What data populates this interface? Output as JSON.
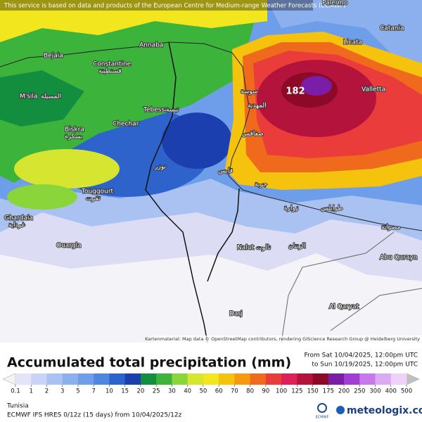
{
  "header": {
    "notice": "This service is based on data and products of the European Centre for Medium-range Weather Forecasts (ECMWF)"
  },
  "map": {
    "max_label": 182,
    "cities": [
      "Palermo",
      "Catania",
      "Licata",
      "Valletta",
      "Annaba",
      "Bejaia",
      "Constantine",
      "قسنطينة",
      "M'sila",
      "المسيلة",
      "Biskra",
      "بسكرة",
      "Tebessa",
      "تبسة",
      "Chechar",
      "Touggourt",
      "تقرت",
      "Ghardaia",
      "غرداية",
      "Ouargla",
      "سوسة",
      "المهدية",
      "صفاقس",
      "قابس",
      "جربة",
      "زوارة",
      "طرابلس",
      "مصراتة",
      "Nalut",
      "نالوت",
      "الزنتان",
      "Abu Qurayn",
      "Al Qaryat",
      "Darj",
      "توزر"
    ],
    "attribution": "Kartenmaterial: Map data © OpenStreetMap contributors, rendering GIScience Research Group @ Heidelberg University"
  },
  "footer": {
    "title": "Accumulated total precipitation (mm)",
    "period_from": "From Sat 10/04/2025, 12:00pm UTC",
    "period_to": "to Sun 10/19/2025, 12:00pm UTC",
    "region": "Tunisia",
    "model": "ECMWF IFS HRES 0/12z (15 days) from 10/04/2025/12z",
    "ecmwf": "ECMWF",
    "brand": "meteologix.com"
  },
  "legend": {
    "ticks": [
      0.1,
      1,
      2,
      3,
      5,
      7,
      10,
      15,
      20,
      25,
      30,
      40,
      50,
      60,
      70,
      80,
      90,
      100,
      125,
      150,
      175,
      200,
      250,
      300,
      400,
      500
    ],
    "colors": [
      "#e4e4f8",
      "#c8d4f5",
      "#aac2f2",
      "#8cb0ee",
      "#6e9de9",
      "#4f86e0",
      "#2f63cc",
      "#1b3fae",
      "#138d3e",
      "#3cb43c",
      "#8ad63a",
      "#d6e630",
      "#f2e61e",
      "#f5c20e",
      "#f59a0e",
      "#f06a1e",
      "#eb3c3c",
      "#e01e5a",
      "#b4143c",
      "#8c0a28",
      "#7a1ea8",
      "#a23cd2",
      "#c878ec",
      "#dcaaf2",
      "#eed2f8"
    ]
  }
}
